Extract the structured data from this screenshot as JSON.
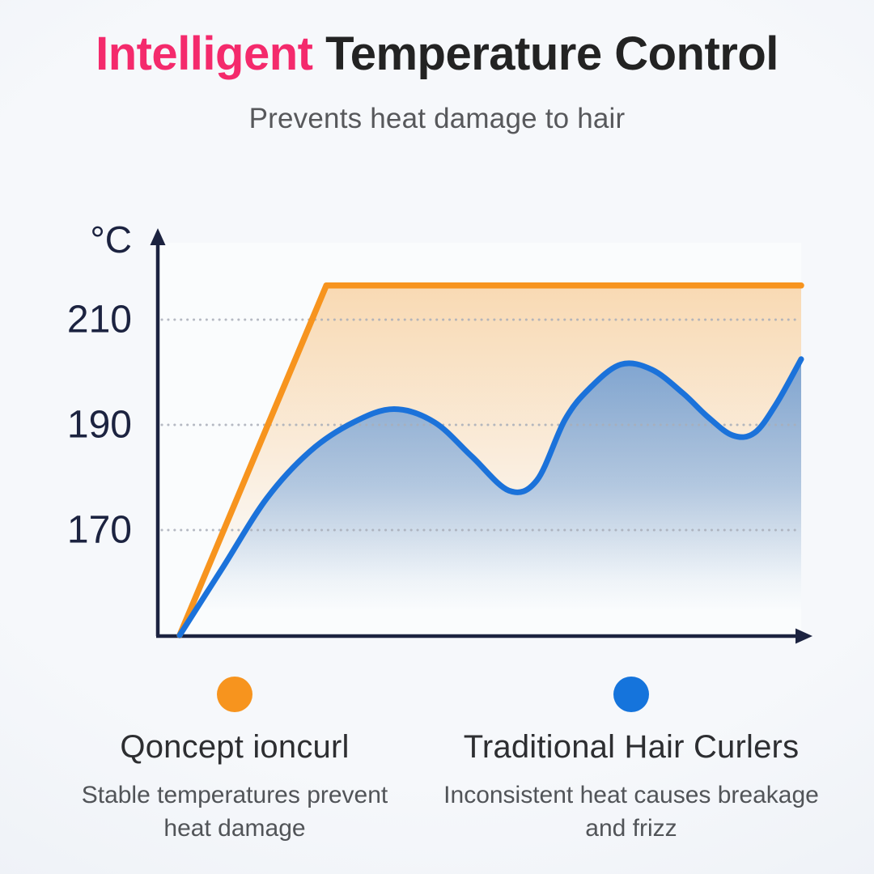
{
  "header": {
    "title_highlight": "Intelligent",
    "title_rest": " Temperature Control",
    "subtitle": "Prevents heat damage to hair",
    "highlight_color": "#F42A6C",
    "title_color": "#232323"
  },
  "chart_data": {
    "type": "line",
    "title": "",
    "unit_label": "°C",
    "xlabel": "",
    "ylabel": "°C",
    "y_ticks": [
      210,
      190,
      170
    ],
    "ylim": [
      148,
      222
    ],
    "xlim": [
      0,
      100
    ],
    "grid": "dotted horizontal gridlines at each y tick",
    "legend_position": "bottom",
    "axis_color": "#1C2340",
    "grid_color": "#A9AEB9",
    "series": [
      {
        "name": "Qoncept ioncurl",
        "color": "#F7941E",
        "fill_color": "#F7941E",
        "interpolation": "linear",
        "behavior": "rises quickly then holds a flat stable temperature",
        "points": [
          [
            0,
            150
          ],
          [
            23.6,
            216.5
          ],
          [
            100,
            216.5
          ]
        ]
      },
      {
        "name": "Traditional Hair Curlers",
        "color": "#1B72DA",
        "fill_color": "#1B72DA",
        "interpolation": "smooth",
        "behavior": "oscillates inconsistently between ~177°C and ~202°C",
        "points": [
          [
            0,
            150
          ],
          [
            7,
            163
          ],
          [
            14,
            176
          ],
          [
            21,
            185
          ],
          [
            28,
            190.5
          ],
          [
            34.5,
            193
          ],
          [
            41,
            190.5
          ],
          [
            47,
            184
          ],
          [
            53,
            177.5
          ],
          [
            57.5,
            179.5
          ],
          [
            62,
            191
          ],
          [
            66,
            197
          ],
          [
            71,
            201.5
          ],
          [
            76,
            200.5
          ],
          [
            81,
            196
          ],
          [
            85,
            191.5
          ],
          [
            89,
            188
          ],
          [
            92.5,
            188.5
          ],
          [
            96,
            194
          ],
          [
            100,
            202.5
          ]
        ]
      }
    ]
  },
  "legend": {
    "items": [
      {
        "label": "Qoncept ioncurl",
        "color": "#F7941E",
        "description": "Stable temperatures prevent heat damage"
      },
      {
        "label": "Traditional Hair Curlers",
        "color": "#1574DC",
        "description": "Inconsistent heat causes breakage and frizz"
      }
    ]
  }
}
